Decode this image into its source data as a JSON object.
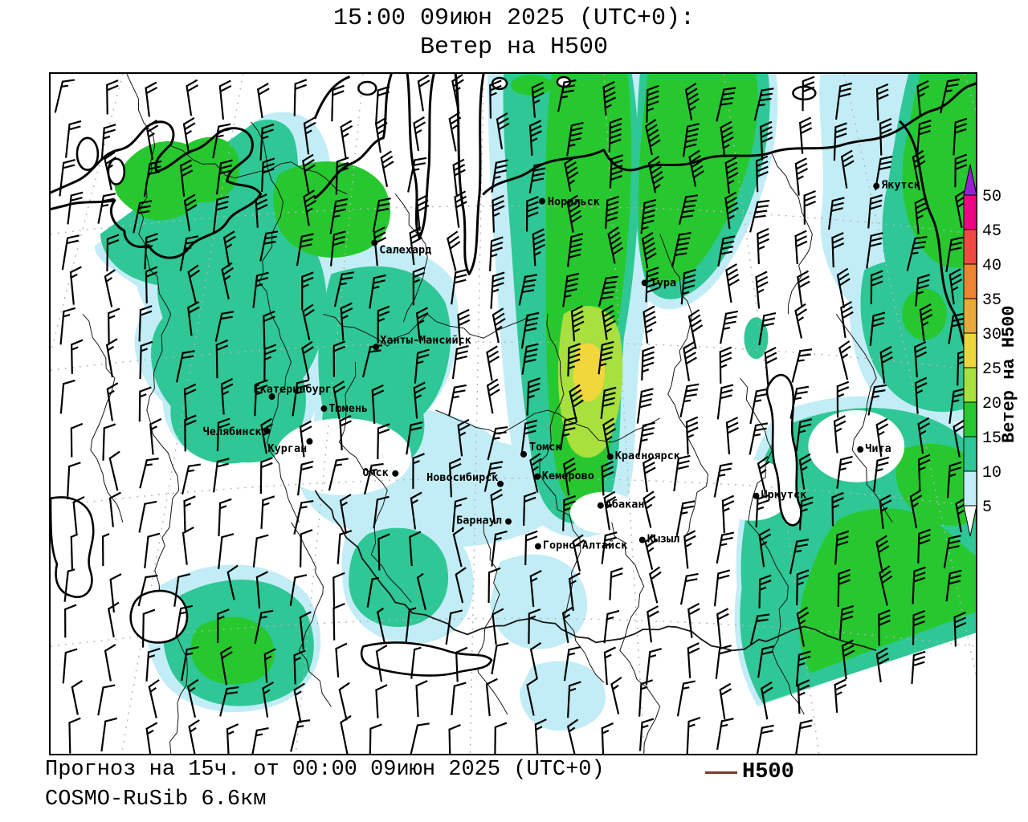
{
  "title": {
    "line1": "15:00 09июн 2025 (UTC+0):",
    "line2": "Ветер на H500"
  },
  "footer": {
    "line1": "Прогноз на 15ч. от 00:00 09июн 2025 (UTC+0)",
    "line2": "COSMO-RuSib 6.6км"
  },
  "legend": {
    "label": "H500",
    "line_color": "#7b3a2c"
  },
  "colorbar": {
    "title": "Ветер на H500",
    "tick_labels": [
      "50",
      "45",
      "40",
      "35",
      "30",
      "25",
      "20",
      "15",
      "10",
      "5"
    ],
    "segment_colors_top_to_bottom": [
      "#ee0584",
      "#f04a42",
      "#ef8430",
      "#e9a93b",
      "#ecd73b",
      "#a8e03e",
      "#27c82f",
      "#2fc795",
      "#c2edf6"
    ],
    "above_max_color": "#9a1fd2",
    "below_min_color": "#ffffff"
  },
  "map": {
    "fills": {
      "wind_5_10": "#c2edf6",
      "wind_10_15": "#2fc795",
      "wind_15_20": "#27c82f",
      "wind_20_25": "#a8e03e",
      "wind_25_30": "#f0d73b"
    },
    "line_colors": {
      "coast": "#000000",
      "region_border": "#161616",
      "graticule": "#b4b4b4",
      "wind_barb": "#000000"
    },
    "cities": [
      {
        "name": "Норильск",
        "dot": [
          613,
          159
        ],
        "label": [
          620,
          164
        ]
      },
      {
        "name": "Салехард",
        "dot": [
          404,
          211
        ],
        "label": [
          410,
          224
        ]
      },
      {
        "name": "Ханты-Мансийск",
        "dot": [
          406,
          341
        ],
        "label": [
          411,
          337
        ]
      },
      {
        "name": "Екатеринбург",
        "dot": [
          276,
          403
        ],
        "label": [
          253,
          398
        ]
      },
      {
        "name": "Тюмень",
        "dot": [
          341,
          418
        ],
        "label": [
          347,
          422
        ]
      },
      {
        "name": "Челябинск",
        "dot": [
          270,
          446
        ],
        "label": [
          190,
          451
        ]
      },
      {
        "name": "Курган",
        "dot": [
          323,
          459
        ],
        "label": [
          271,
          472
        ]
      },
      {
        "name": "Омск",
        "dot": [
          430,
          499
        ],
        "label": [
          389,
          502
        ]
      },
      {
        "name": "Новосибирск",
        "dot": [
          561,
          512
        ],
        "label": [
          469,
          508
        ]
      },
      {
        "name": "Томск",
        "dot": [
          590,
          475
        ],
        "label": [
          597,
          470
        ]
      },
      {
        "name": "Кемерово",
        "dot": [
          607,
          503
        ],
        "label": [
          613,
          506
        ]
      },
      {
        "name": "Красноярск",
        "dot": [
          698,
          478
        ],
        "label": [
          704,
          481
        ]
      },
      {
        "name": "Тура",
        "dot": [
          741,
          261
        ],
        "label": [
          748,
          265
        ]
      },
      {
        "name": "Абакан",
        "dot": [
          686,
          539
        ],
        "label": [
          692,
          542
        ]
      },
      {
        "name": "Барнаул",
        "dot": [
          571,
          559
        ],
        "label": [
          506,
          562
        ]
      },
      {
        "name": "Горно-Алтайск",
        "dot": [
          608,
          590
        ],
        "label": [
          614,
          593
        ]
      },
      {
        "name": "Кызыл",
        "dot": [
          738,
          582
        ],
        "label": [
          744,
          585
        ]
      },
      {
        "name": "Иркутск",
        "dot": [
          880,
          527
        ],
        "label": [
          886,
          530
        ]
      },
      {
        "name": "Чита",
        "dot": [
          1010,
          469
        ],
        "label": [
          1016,
          472
        ]
      },
      {
        "name": "Якутск",
        "dot": [
          1030,
          140
        ],
        "label": [
          1036,
          143
        ]
      }
    ]
  }
}
